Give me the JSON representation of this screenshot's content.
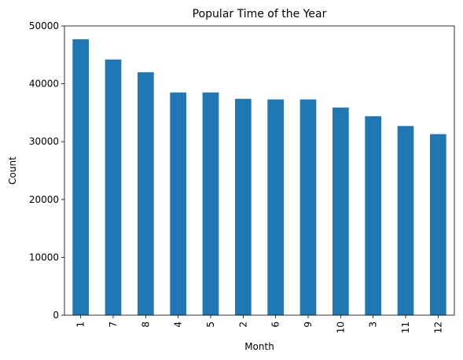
{
  "chart_data": {
    "type": "bar",
    "title": "Popular Time of the Year",
    "xlabel": "Month",
    "ylabel": "Count",
    "categories": [
      "1",
      "7",
      "8",
      "4",
      "5",
      "2",
      "6",
      "9",
      "10",
      "3",
      "11",
      "12"
    ],
    "values": [
      47700,
      44200,
      42000,
      38500,
      38500,
      37400,
      37300,
      37300,
      35900,
      34400,
      32700,
      31300
    ],
    "ylim": [
      0,
      50000
    ],
    "yticks": [
      0,
      10000,
      20000,
      30000,
      40000,
      50000
    ],
    "ytick_labels": [
      "0",
      "10000",
      "20000",
      "30000",
      "40000",
      "50000"
    ],
    "grid": false,
    "bar_color": "#1f77b4"
  }
}
